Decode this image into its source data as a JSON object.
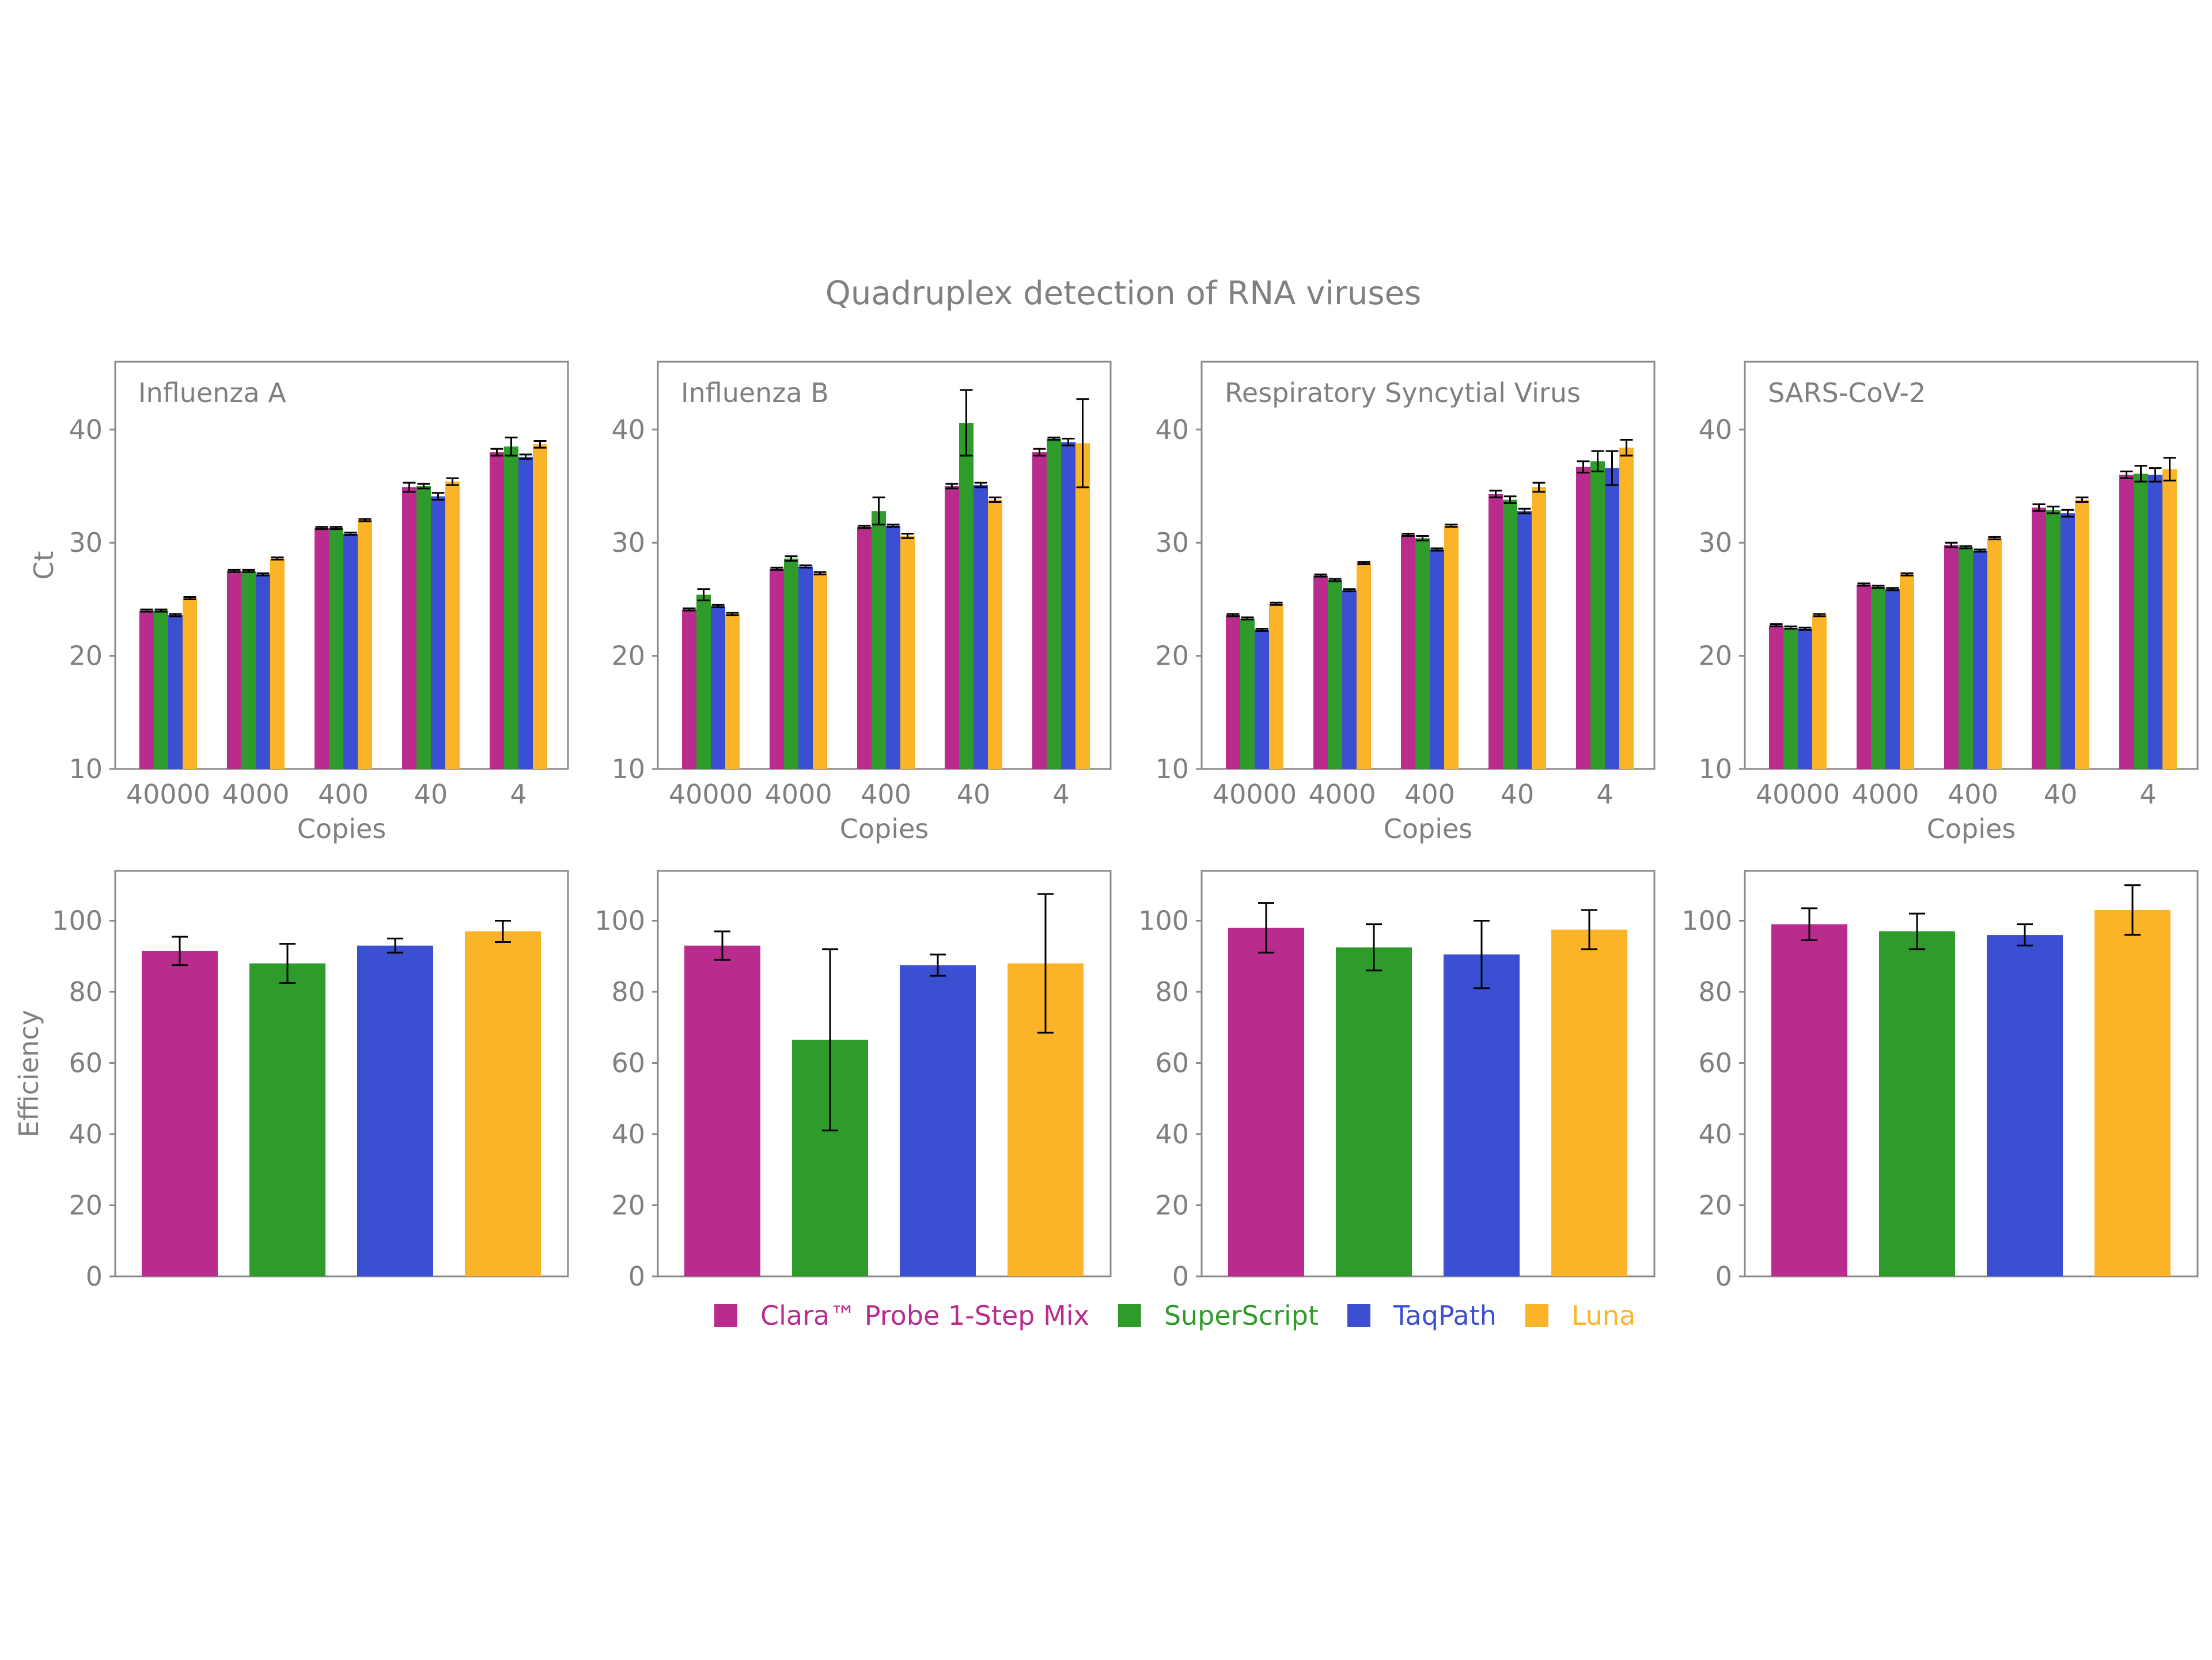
{
  "figure": {
    "title": "Quadruplex detection of RNA viruses"
  },
  "colors": {
    "Clara™ Probe 1-Step Mix": "#b92b8c",
    "SuperScript": "#2e9b2a",
    "TaqPath": "#3a4fd2",
    "Luna": "#fbb428"
  },
  "legend": [
    {
      "label": "Clara™ Probe 1-Step Mix",
      "color": "#b92b8c"
    },
    {
      "label": "SuperScript",
      "color": "#2e9b2a"
    },
    {
      "label": "TaqPath",
      "color": "#3a4fd2"
    },
    {
      "label": "Luna",
      "color": "#fbb428"
    }
  ],
  "chart_data": [
    {
      "type": "bar",
      "row": "ct",
      "panel_title": "Influenza A",
      "xlabel": "Copies",
      "ylabel": "Ct",
      "ylim": [
        10,
        46
      ],
      "yticks": [
        10,
        20,
        30,
        40
      ],
      "categories": [
        "40000",
        "4000",
        "400",
        "40",
        "4"
      ],
      "series": [
        {
          "name": "Clara™ Probe 1-Step Mix",
          "values": [
            24.0,
            27.5,
            31.3,
            34.9,
            38.0
          ],
          "errors": [
            0.1,
            0.1,
            0.1,
            0.4,
            0.3
          ]
        },
        {
          "name": "SuperScript",
          "values": [
            24.0,
            27.5,
            31.3,
            35.0,
            38.5
          ],
          "errors": [
            0.1,
            0.1,
            0.1,
            0.2,
            0.8
          ]
        },
        {
          "name": "TaqPath",
          "values": [
            23.6,
            27.2,
            30.8,
            34.1,
            37.6
          ],
          "errors": [
            0.1,
            0.1,
            0.1,
            0.3,
            0.2
          ]
        },
        {
          "name": "Luna",
          "values": [
            25.1,
            28.6,
            32.0,
            35.4,
            38.7
          ],
          "errors": [
            0.1,
            0.1,
            0.1,
            0.3,
            0.3
          ]
        }
      ]
    },
    {
      "type": "bar",
      "row": "ct",
      "panel_title": "Influenza B",
      "xlabel": "Copies",
      "ylabel": "",
      "ylim": [
        10,
        46
      ],
      "yticks": [
        10,
        20,
        30,
        40
      ],
      "categories": [
        "40000",
        "4000",
        "400",
        "40",
        "4"
      ],
      "series": [
        {
          "name": "Clara™ Probe 1-Step Mix",
          "values": [
            24.1,
            27.7,
            31.4,
            35.0,
            38.0
          ],
          "errors": [
            0.1,
            0.1,
            0.1,
            0.2,
            0.3
          ]
        },
        {
          "name": "SuperScript",
          "values": [
            25.4,
            28.6,
            32.8,
            40.6,
            39.2
          ],
          "errors": [
            0.5,
            0.2,
            1.2,
            2.9,
            0.1
          ]
        },
        {
          "name": "TaqPath",
          "values": [
            24.4,
            27.9,
            31.5,
            35.1,
            38.9
          ],
          "errors": [
            0.1,
            0.1,
            0.1,
            0.2,
            0.3
          ]
        },
        {
          "name": "Luna",
          "values": [
            23.7,
            27.3,
            30.6,
            33.8,
            38.8
          ],
          "errors": [
            0.1,
            0.1,
            0.2,
            0.2,
            3.9
          ]
        }
      ]
    },
    {
      "type": "bar",
      "row": "ct",
      "panel_title": "Respiratory Syncytial Virus",
      "xlabel": "Copies",
      "ylabel": "",
      "ylim": [
        10,
        46
      ],
      "yticks": [
        10,
        20,
        30,
        40
      ],
      "categories": [
        "40000",
        "4000",
        "400",
        "40",
        "4"
      ],
      "series": [
        {
          "name": "Clara™ Probe 1-Step Mix",
          "values": [
            23.6,
            27.1,
            30.7,
            34.3,
            36.7
          ],
          "errors": [
            0.1,
            0.1,
            0.1,
            0.3,
            0.5
          ]
        },
        {
          "name": "SuperScript",
          "values": [
            23.3,
            26.7,
            30.4,
            33.8,
            37.2
          ],
          "errors": [
            0.1,
            0.1,
            0.2,
            0.3,
            0.9
          ]
        },
        {
          "name": "TaqPath",
          "values": [
            22.3,
            25.8,
            29.4,
            32.8,
            36.6
          ],
          "errors": [
            0.1,
            0.1,
            0.1,
            0.2,
            1.5
          ]
        },
        {
          "name": "Luna",
          "values": [
            24.6,
            28.2,
            31.5,
            34.9,
            38.4
          ],
          "errors": [
            0.1,
            0.1,
            0.1,
            0.4,
            0.7
          ]
        }
      ]
    },
    {
      "type": "bar",
      "row": "ct",
      "panel_title": "SARS-CoV-2",
      "xlabel": "Copies",
      "ylabel": "",
      "ylim": [
        10,
        46
      ],
      "yticks": [
        10,
        20,
        30,
        40
      ],
      "categories": [
        "40000",
        "4000",
        "400",
        "40",
        "4"
      ],
      "series": [
        {
          "name": "Clara™ Probe 1-Step Mix",
          "values": [
            22.7,
            26.3,
            29.8,
            33.1,
            36.0
          ],
          "errors": [
            0.1,
            0.1,
            0.2,
            0.3,
            0.3
          ]
        },
        {
          "name": "SuperScript",
          "values": [
            22.5,
            26.1,
            29.6,
            32.9,
            36.1
          ],
          "errors": [
            0.1,
            0.1,
            0.1,
            0.3,
            0.7
          ]
        },
        {
          "name": "TaqPath",
          "values": [
            22.4,
            25.9,
            29.3,
            32.6,
            36.0
          ],
          "errors": [
            0.1,
            0.1,
            0.1,
            0.3,
            0.6
          ]
        },
        {
          "name": "Luna",
          "values": [
            23.6,
            27.2,
            30.4,
            33.8,
            36.5
          ],
          "errors": [
            0.1,
            0.1,
            0.1,
            0.2,
            1.0
          ]
        }
      ]
    },
    {
      "type": "bar",
      "row": "efficiency",
      "panel_title": "",
      "xlabel": "",
      "ylabel": "Efficiency",
      "ylim": [
        0,
        114
      ],
      "yticks": [
        0,
        20,
        40,
        60,
        80,
        100
      ],
      "categories": [
        "Clara™ Probe 1-Step Mix",
        "SuperScript",
        "TaqPath",
        "Luna"
      ],
      "values": [
        91.5,
        88,
        93,
        97
      ],
      "errors": [
        4,
        5.5,
        2,
        3
      ]
    },
    {
      "type": "bar",
      "row": "efficiency",
      "panel_title": "",
      "xlabel": "",
      "ylabel": "",
      "ylim": [
        0,
        114
      ],
      "yticks": [
        0,
        20,
        40,
        60,
        80,
        100
      ],
      "categories": [
        "Clara™ Probe 1-Step Mix",
        "SuperScript",
        "TaqPath",
        "Luna"
      ],
      "values": [
        93,
        66.5,
        87.5,
        88
      ],
      "errors": [
        4,
        25.5,
        3,
        19.5
      ]
    },
    {
      "type": "bar",
      "row": "efficiency",
      "panel_title": "",
      "xlabel": "",
      "ylabel": "",
      "ylim": [
        0,
        114
      ],
      "yticks": [
        0,
        20,
        40,
        60,
        80,
        100
      ],
      "categories": [
        "Clara™ Probe 1-Step Mix",
        "SuperScript",
        "TaqPath",
        "Luna"
      ],
      "values": [
        98,
        92.5,
        90.5,
        97.5
      ],
      "errors": [
        7,
        6.5,
        9.5,
        5.5
      ]
    },
    {
      "type": "bar",
      "row": "efficiency",
      "panel_title": "",
      "xlabel": "",
      "ylabel": "",
      "ylim": [
        0,
        114
      ],
      "yticks": [
        0,
        20,
        40,
        60,
        80,
        100
      ],
      "categories": [
        "Clara™ Probe 1-Step Mix",
        "SuperScript",
        "TaqPath",
        "Luna"
      ],
      "values": [
        99,
        97,
        96,
        103
      ],
      "errors": [
        4.5,
        5,
        3,
        7
      ]
    }
  ]
}
